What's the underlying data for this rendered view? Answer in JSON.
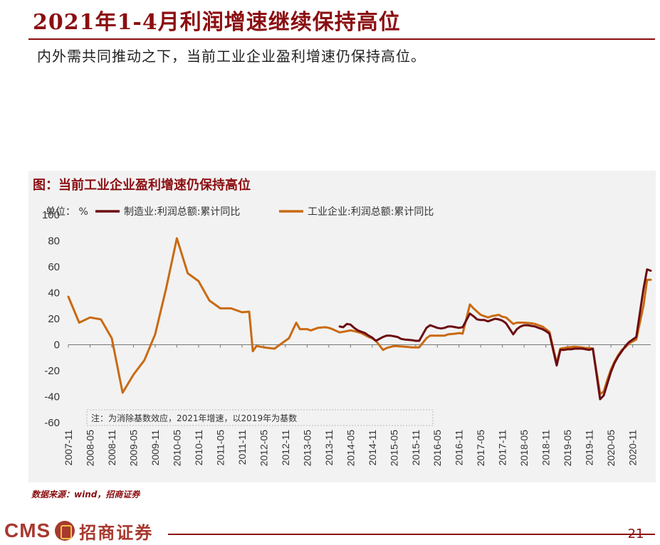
{
  "page": {
    "title": "2021年1-4月利润增速继续保持高位",
    "subtitle": "内外需共同推动之下，当前工业企业盈利增速仍保持高位。",
    "source": "数据来源：wind，招商证券",
    "page_number": "-21-",
    "brand_color": "#8b0e11"
  },
  "logo": {
    "cms": "CMS",
    "name": "招商证券",
    "icon": "cms-logo-icon"
  },
  "chart_data": {
    "type": "line",
    "title": "图：当前工业企业盈利增速仍保持高位",
    "unit_label": "单位：",
    "unit": "%",
    "note": "注：为消除基数效应，2021年增速，以2019年为基数",
    "ylim": [
      -60,
      100
    ],
    "yticks": [
      -60,
      -40,
      -20,
      0,
      20,
      40,
      60,
      80,
      100
    ],
    "grid": false,
    "legend_position": "top",
    "x_tick_labels": [
      "2007-11",
      "2008-05",
      "2008-11",
      "2009-05",
      "2009-11",
      "2010-05",
      "2010-11",
      "2011-05",
      "2011-11",
      "2012-05",
      "2012-11",
      "2013-05",
      "2013-11",
      "2014-05",
      "2014-11",
      "2015-05",
      "2015-11",
      "2016-05",
      "2016-11",
      "2017-05",
      "2017-11",
      "2018-05",
      "2018-11",
      "2019-05",
      "2019-11",
      "2020-05",
      "2020-11"
    ],
    "x_axis_start": "2007-11",
    "x_axis_end": "2021-04",
    "series": [
      {
        "name": "制造业:利润总额:累计同比",
        "color": "#6b0b12",
        "points": [
          [
            "2014-02",
            14
          ],
          [
            "2014-03",
            13.5
          ],
          [
            "2014-04",
            16
          ],
          [
            "2014-05",
            15.5
          ],
          [
            "2014-06",
            13
          ],
          [
            "2014-07",
            11
          ],
          [
            "2014-08",
            10
          ],
          [
            "2014-09",
            9
          ],
          [
            "2014-10",
            7
          ],
          [
            "2014-11",
            5.5
          ],
          [
            "2014-12",
            3
          ],
          [
            "2015-02",
            6
          ],
          [
            "2015-03",
            7
          ],
          [
            "2015-04",
            7
          ],
          [
            "2015-05",
            6.5
          ],
          [
            "2015-06",
            6
          ],
          [
            "2015-07",
            4.5
          ],
          [
            "2015-08",
            4
          ],
          [
            "2015-09",
            3.8
          ],
          [
            "2015-10",
            3.5
          ],
          [
            "2015-11",
            3
          ],
          [
            "2015-12",
            3
          ],
          [
            "2016-02",
            13
          ],
          [
            "2016-03",
            15
          ],
          [
            "2016-04",
            14
          ],
          [
            "2016-05",
            13
          ],
          [
            "2016-06",
            12.5
          ],
          [
            "2016-07",
            13
          ],
          [
            "2016-08",
            14
          ],
          [
            "2016-09",
            14
          ],
          [
            "2016-10",
            13.5
          ],
          [
            "2016-11",
            13
          ],
          [
            "2016-12",
            13.5
          ],
          [
            "2017-02",
            24
          ],
          [
            "2017-03",
            22
          ],
          [
            "2017-04",
            19.5
          ],
          [
            "2017-05",
            19
          ],
          [
            "2017-06",
            19
          ],
          [
            "2017-07",
            18
          ],
          [
            "2017-08",
            19
          ],
          [
            "2017-09",
            20
          ],
          [
            "2017-10",
            19.5
          ],
          [
            "2017-11",
            18.5
          ],
          [
            "2017-12",
            16.5
          ],
          [
            "2018-02",
            8
          ],
          [
            "2018-03",
            12
          ],
          [
            "2018-04",
            14
          ],
          [
            "2018-05",
            15
          ],
          [
            "2018-06",
            15
          ],
          [
            "2018-07",
            14.5
          ],
          [
            "2018-08",
            14
          ],
          [
            "2018-09",
            13
          ],
          [
            "2018-10",
            12
          ],
          [
            "2018-11",
            10.5
          ],
          [
            "2018-12",
            8.5
          ],
          [
            "2019-02",
            -16
          ],
          [
            "2019-03",
            -4
          ],
          [
            "2019-04",
            -4
          ],
          [
            "2019-05",
            -3.5
          ],
          [
            "2019-06",
            -3.5
          ],
          [
            "2019-07",
            -3
          ],
          [
            "2019-08",
            -3
          ],
          [
            "2019-09",
            -3
          ],
          [
            "2019-10",
            -3.5
          ],
          [
            "2019-11",
            -4
          ],
          [
            "2019-12",
            -3
          ],
          [
            "2020-02",
            -42
          ],
          [
            "2020-03",
            -39
          ],
          [
            "2020-04",
            -30
          ],
          [
            "2020-05",
            -21
          ],
          [
            "2020-06",
            -14
          ],
          [
            "2020-07",
            -9
          ],
          [
            "2020-08",
            -5
          ],
          [
            "2020-09",
            -1
          ],
          [
            "2020-10",
            2
          ],
          [
            "2020-11",
            4
          ],
          [
            "2020-12",
            6
          ],
          [
            "2021-02",
            43
          ],
          [
            "2021-03",
            58
          ],
          [
            "2021-04",
            57
          ]
        ]
      },
      {
        "name": "工业企业:利润总额:累计同比",
        "color": "#c96a12",
        "points": [
          [
            "2007-11",
            37
          ],
          [
            "2008-02",
            17
          ],
          [
            "2008-05",
            21
          ],
          [
            "2008-08",
            19.5
          ],
          [
            "2008-11",
            5
          ],
          [
            "2009-02",
            -37
          ],
          [
            "2009-05",
            -23
          ],
          [
            "2009-08",
            -12
          ],
          [
            "2009-11",
            8
          ],
          [
            "2010-02",
            43
          ],
          [
            "2010-05",
            82
          ],
          [
            "2010-08",
            55
          ],
          [
            "2010-11",
            49
          ],
          [
            "2011-02",
            34
          ],
          [
            "2011-05",
            28
          ],
          [
            "2011-08",
            28
          ],
          [
            "2011-11",
            25
          ],
          [
            "2012-01",
            25.5
          ],
          [
            "2012-02",
            -5
          ],
          [
            "2012-03",
            -1
          ],
          [
            "2012-05",
            -2
          ],
          [
            "2012-08",
            -3
          ],
          [
            "2012-11",
            3
          ],
          [
            "2012-12",
            5
          ],
          [
            "2013-02",
            17
          ],
          [
            "2013-03",
            12
          ],
          [
            "2013-05",
            12
          ],
          [
            "2013-06",
            11
          ],
          [
            "2013-08",
            13
          ],
          [
            "2013-10",
            13.5
          ],
          [
            "2013-11",
            13
          ],
          [
            "2013-12",
            12
          ],
          [
            "2014-02",
            9.5
          ],
          [
            "2014-03",
            10
          ],
          [
            "2014-05",
            11
          ],
          [
            "2014-06",
            10.5
          ],
          [
            "2014-08",
            9
          ],
          [
            "2014-10",
            6
          ],
          [
            "2014-11",
            5
          ],
          [
            "2014-12",
            3
          ],
          [
            "2015-02",
            -4
          ],
          [
            "2015-03",
            -2.5
          ],
          [
            "2015-05",
            -1
          ],
          [
            "2015-08",
            -1.5
          ],
          [
            "2015-10",
            -2
          ],
          [
            "2015-12",
            -2
          ],
          [
            "2016-02",
            5
          ],
          [
            "2016-03",
            7
          ],
          [
            "2016-05",
            7
          ],
          [
            "2016-07",
            7
          ],
          [
            "2016-08",
            8
          ],
          [
            "2016-10",
            8.5
          ],
          [
            "2016-11",
            9
          ],
          [
            "2016-12",
            8.5
          ],
          [
            "2017-02",
            31
          ],
          [
            "2017-03",
            28
          ],
          [
            "2017-05",
            23
          ],
          [
            "2017-07",
            21
          ],
          [
            "2017-08",
            22
          ],
          [
            "2017-10",
            23
          ],
          [
            "2017-11",
            21.5
          ],
          [
            "2017-12",
            21
          ],
          [
            "2018-02",
            16
          ],
          [
            "2018-03",
            17
          ],
          [
            "2018-05",
            17
          ],
          [
            "2018-07",
            16.5
          ],
          [
            "2018-08",
            16
          ],
          [
            "2018-10",
            14
          ],
          [
            "2018-11",
            12
          ],
          [
            "2018-12",
            10
          ],
          [
            "2019-02",
            -14
          ],
          [
            "2019-03",
            -3
          ],
          [
            "2019-05",
            -2
          ],
          [
            "2019-07",
            -1.5
          ],
          [
            "2019-09",
            -2
          ],
          [
            "2019-10",
            -2.5
          ],
          [
            "2019-11",
            -2.5
          ],
          [
            "2019-12",
            -3
          ],
          [
            "2020-02",
            -38
          ],
          [
            "2020-03",
            -36
          ],
          [
            "2020-04",
            -27
          ],
          [
            "2020-05",
            -19
          ],
          [
            "2020-06",
            -13
          ],
          [
            "2020-07",
            -8
          ],
          [
            "2020-08",
            -4
          ],
          [
            "2020-09",
            -2
          ],
          [
            "2020-10",
            1
          ],
          [
            "2020-11",
            2.5
          ],
          [
            "2020-12",
            4
          ],
          [
            "2021-02",
            30
          ],
          [
            "2021-03",
            50
          ],
          [
            "2021-04",
            50
          ]
        ]
      }
    ]
  }
}
